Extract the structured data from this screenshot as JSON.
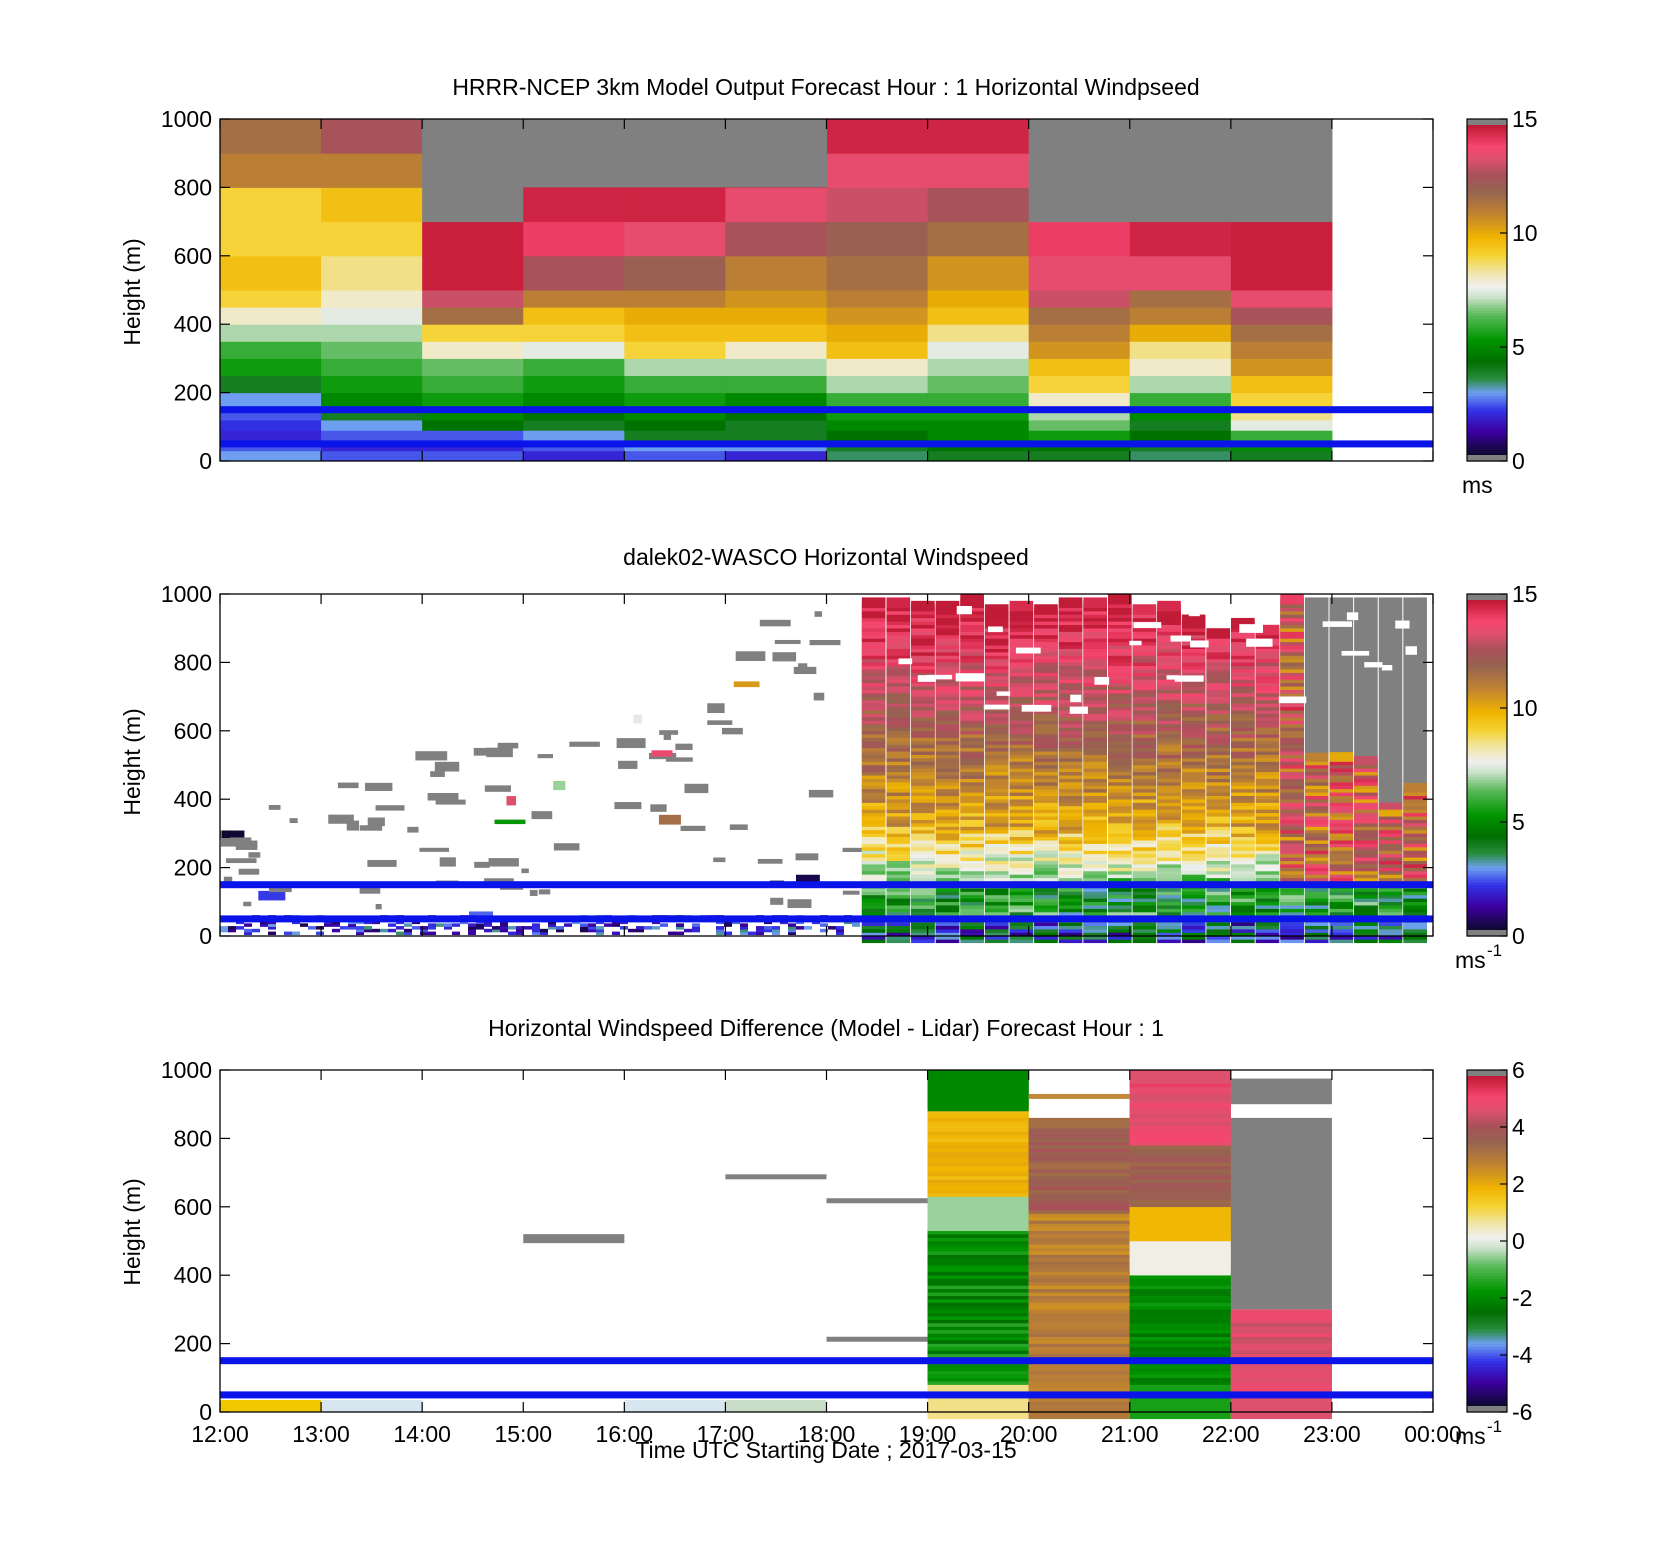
{
  "figure": {
    "xlabel": "Time UTC  Starting Date ; 2017-03-15",
    "xticks": [
      "12:00",
      "13:00",
      "14:00",
      "15:00",
      "16:00",
      "17:00",
      "18:00",
      "19:00",
      "20:00",
      "21:00",
      "22:00",
      "23:00",
      "00:00"
    ],
    "hlines_m": [
      150,
      50
    ],
    "hline_color": "#0a14e8"
  },
  "chart_data": [
    {
      "type": "heatmap",
      "title": "HRRR-NCEP 3km Model Output   Forecast Hour : 1 Horizontal Windpseed",
      "ylabel": "Height (m)",
      "ylim": [
        0,
        1000
      ],
      "yticks": [
        "0",
        "200",
        "400",
        "600",
        "800",
        "1000"
      ],
      "colorbar": {
        "min": 0,
        "max": 15,
        "ticks": [
          "0",
          "5",
          "10",
          "15"
        ],
        "unit": "ms"
      },
      "x_hours": [
        "12:00",
        "13:00",
        "14:00",
        "15:00",
        "16:00",
        "17:00",
        "18:00",
        "19:00",
        "20:00",
        "21:00",
        "22:00"
      ],
      "layer_tops_m": [
        30,
        60,
        90,
        120,
        160,
        200,
        250,
        300,
        350,
        400,
        450,
        500,
        600,
        700,
        800,
        900,
        1000
      ],
      "values_ms": [
        [
          3.0,
          2.5,
          2.0,
          2.2,
          2.5,
          3.0,
          4.0,
          5.5,
          6.0,
          7.0,
          8.0,
          9.0,
          9.5,
          9.0,
          9.0,
          11.0,
          11.5
        ],
        [
          2.5,
          2.0,
          2.5,
          3.0,
          4.0,
          5.0,
          5.5,
          6.0,
          6.5,
          7.0,
          7.5,
          8.0,
          8.5,
          9.0,
          9.5,
          11.0,
          12.5
        ],
        [
          2.5,
          2.0,
          2.5,
          4.5,
          5.0,
          5.5,
          6.0,
          6.5,
          8.0,
          9.0,
          11.5,
          13.0,
          15,
          15,
          15,
          15,
          15
        ],
        [
          2.0,
          2.5,
          3.0,
          4.0,
          4.5,
          5.0,
          5.5,
          6.0,
          7.5,
          9.0,
          9.5,
          11.0,
          12.5,
          14.0,
          14.5,
          15,
          15
        ],
        [
          2.5,
          3.0,
          4.0,
          4.5,
          5.0,
          5.5,
          6.0,
          7.0,
          9.0,
          9.5,
          10.0,
          11.0,
          12.0,
          13.5,
          14.5,
          15,
          15
        ],
        [
          2.0,
          3.0,
          4.0,
          4.0,
          4.5,
          5.0,
          6.0,
          7.0,
          8.0,
          9.5,
          10.0,
          10.5,
          11.0,
          12.5,
          13.5,
          15,
          15
        ],
        [
          3.5,
          4.0,
          4.5,
          5.0,
          5.5,
          6.0,
          7.0,
          8.0,
          9.5,
          10.0,
          10.5,
          11.0,
          11.5,
          12.0,
          13.0,
          13.5,
          14.5
        ],
        [
          4.0,
          4.5,
          5.0,
          5.0,
          5.5,
          6.0,
          6.5,
          7.0,
          7.5,
          8.5,
          9.5,
          10.0,
          10.5,
          11.5,
          12.5,
          13.5,
          14.5
        ],
        [
          4.0,
          4.5,
          5.5,
          6.5,
          7.0,
          8.0,
          9.0,
          9.5,
          10.5,
          11.0,
          11.5,
          13.0,
          13.5,
          14.0,
          15,
          15,
          15
        ],
        [
          3.5,
          4.0,
          4.5,
          4.0,
          5.0,
          6.0,
          7.0,
          8.0,
          8.5,
          10.0,
          11.0,
          11.5,
          13.5,
          14.5,
          15,
          15,
          15
        ],
        [
          4.0,
          5.0,
          6.0,
          7.5,
          8.5,
          9.0,
          9.5,
          10.5,
          11.0,
          11.5,
          12.5,
          13.5,
          15,
          15,
          15,
          15,
          15
        ]
      ]
    },
    {
      "type": "heatmap",
      "title": "dalek02-WASCO  Horizontal Windspeed",
      "ylabel": "Height (m)",
      "ylim": [
        0,
        1000
      ],
      "yticks": [
        "0",
        "200",
        "400",
        "600",
        "800",
        "1000"
      ],
      "colorbar": {
        "min": 0,
        "max": 15,
        "ticks": [
          "0",
          "5",
          "10",
          "15"
        ],
        "unit": "ms",
        "unit_exp": "-1"
      }
    },
    {
      "type": "heatmap",
      "title": "Horizontal Windspeed Difference (Model - Lidar) Forecast Hour : 1",
      "ylabel": "Height (m)",
      "ylim": [
        0,
        1000
      ],
      "yticks": [
        "0",
        "200",
        "400",
        "600",
        "800",
        "1000"
      ],
      "colorbar": {
        "min": -6,
        "max": 6,
        "ticks": [
          "-6",
          "-4",
          "-2",
          "0",
          "2",
          "4",
          "6"
        ],
        "unit": "ms",
        "unit_exp": "-1"
      }
    }
  ]
}
